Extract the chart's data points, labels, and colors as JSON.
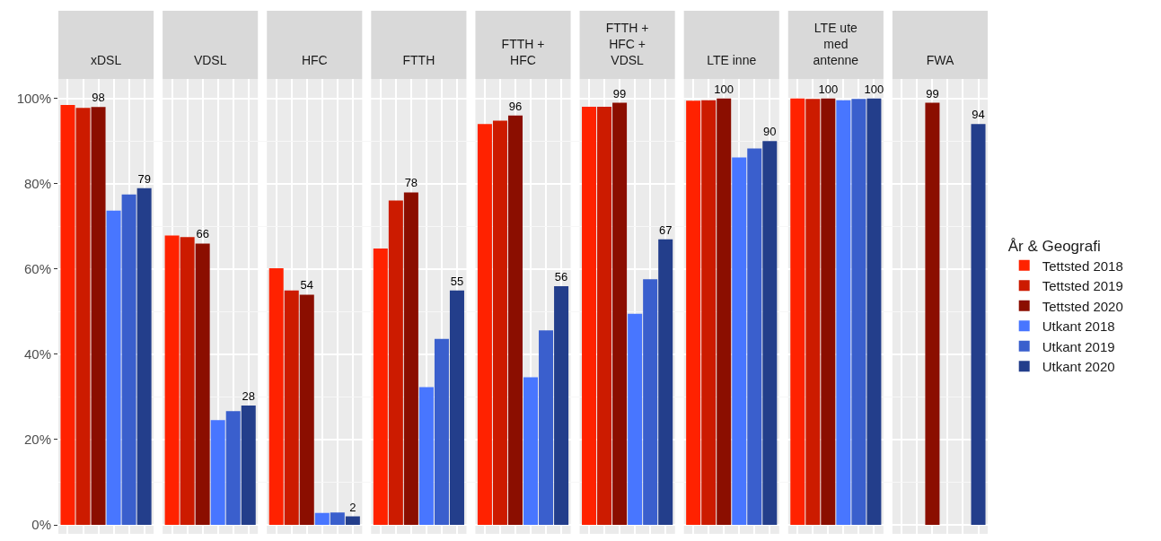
{
  "chart_data": {
    "type": "bar",
    "categories": [
      "xDSL",
      "VDSL",
      "HFC",
      "FTTH",
      "FTTH +\nHFC",
      "FTTH +\nHFC +\nVDSL",
      "LTE inne",
      "LTE ute\nmed\nantenne",
      "FWA"
    ],
    "ylim": [
      -2.1,
      104.6
    ],
    "yticks": [
      {
        "value": 0,
        "label": "0%"
      },
      {
        "value": 20,
        "label": "20%"
      },
      {
        "value": 40,
        "label": "40%"
      },
      {
        "value": 60,
        "label": "60%"
      },
      {
        "value": 80,
        "label": "80%"
      },
      {
        "value": 100,
        "label": "100%"
      }
    ],
    "grid": true,
    "legend": "right",
    "legend_title": "År & Geografi",
    "series": [
      {
        "name": "Tettsted 2018",
        "color": "#ff2200",
        "values": [
          98.5,
          67.9,
          60.2,
          64.8,
          94.0,
          98.1,
          99.5,
          100,
          null
        ]
      },
      {
        "name": "Tettsted 2019",
        "color": "#cc1b00",
        "values": [
          97.8,
          67.5,
          55.0,
          76.1,
          94.8,
          98.1,
          99.6,
          99.9,
          null
        ]
      },
      {
        "name": "Tettsted 2020",
        "color": "#8b0e00",
        "values": [
          98,
          66,
          54,
          78,
          96,
          99,
          100,
          100,
          99
        ],
        "value_labels": [
          "98",
          "66",
          "54",
          "78",
          "96",
          "99",
          "100",
          "100",
          "99"
        ]
      },
      {
        "name": "Utkant 2018",
        "color": "#4876ff",
        "values": [
          73.7,
          24.6,
          2.8,
          32.3,
          34.6,
          49.5,
          86.2,
          99.6,
          null
        ]
      },
      {
        "name": "Utkant 2019",
        "color": "#3a5fcd",
        "values": [
          77.5,
          26.7,
          2.9,
          43.6,
          45.6,
          57.6,
          88.3,
          99.9,
          null
        ]
      },
      {
        "name": "Utkant 2020",
        "color": "#233e8b",
        "values": [
          79,
          28,
          2,
          55,
          56,
          67,
          90,
          100,
          94
        ],
        "value_labels": [
          "79",
          "28",
          "2",
          "55",
          "56",
          "67",
          "90",
          "100",
          "94"
        ]
      }
    ]
  }
}
